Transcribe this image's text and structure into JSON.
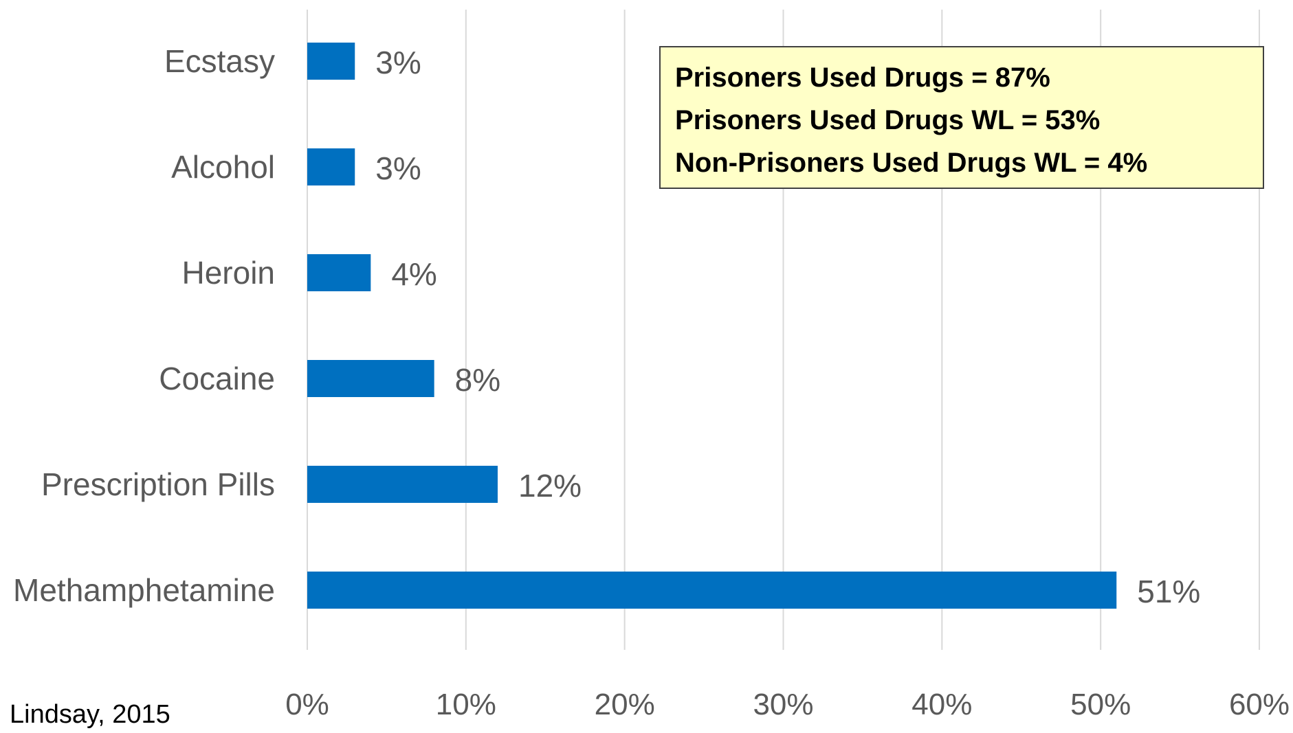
{
  "chart_data": {
    "type": "bar",
    "orientation": "horizontal",
    "categories": [
      "Ecstasy",
      "Alcohol",
      "Heroin",
      "Cocaine",
      "Prescription Pills",
      "Methamphetamine"
    ],
    "values": [
      3,
      3,
      4,
      8,
      12,
      51
    ],
    "value_labels": [
      "3%",
      "3%",
      "4%",
      "8%",
      "12%",
      "51%"
    ],
    "xlim": [
      0,
      60
    ],
    "x_ticks": [
      "0%",
      "10%",
      "20%",
      "30%",
      "40%",
      "50%",
      "60%"
    ],
    "x_tick_values": [
      0,
      10,
      20,
      30,
      40,
      50,
      60
    ],
    "grid": "vertical",
    "legend": "none",
    "bar_color": "#0070C0",
    "annotation": {
      "lines": [
        "Prisoners Used Drugs = 87%",
        "Prisoners Used Drugs WL = 53%",
        "Non-Prisoners Used Drugs WL = 4%"
      ],
      "placement": "top-right",
      "fill": "#FFFFC8",
      "border": "#404040"
    },
    "source": "Lindsay, 2015"
  }
}
